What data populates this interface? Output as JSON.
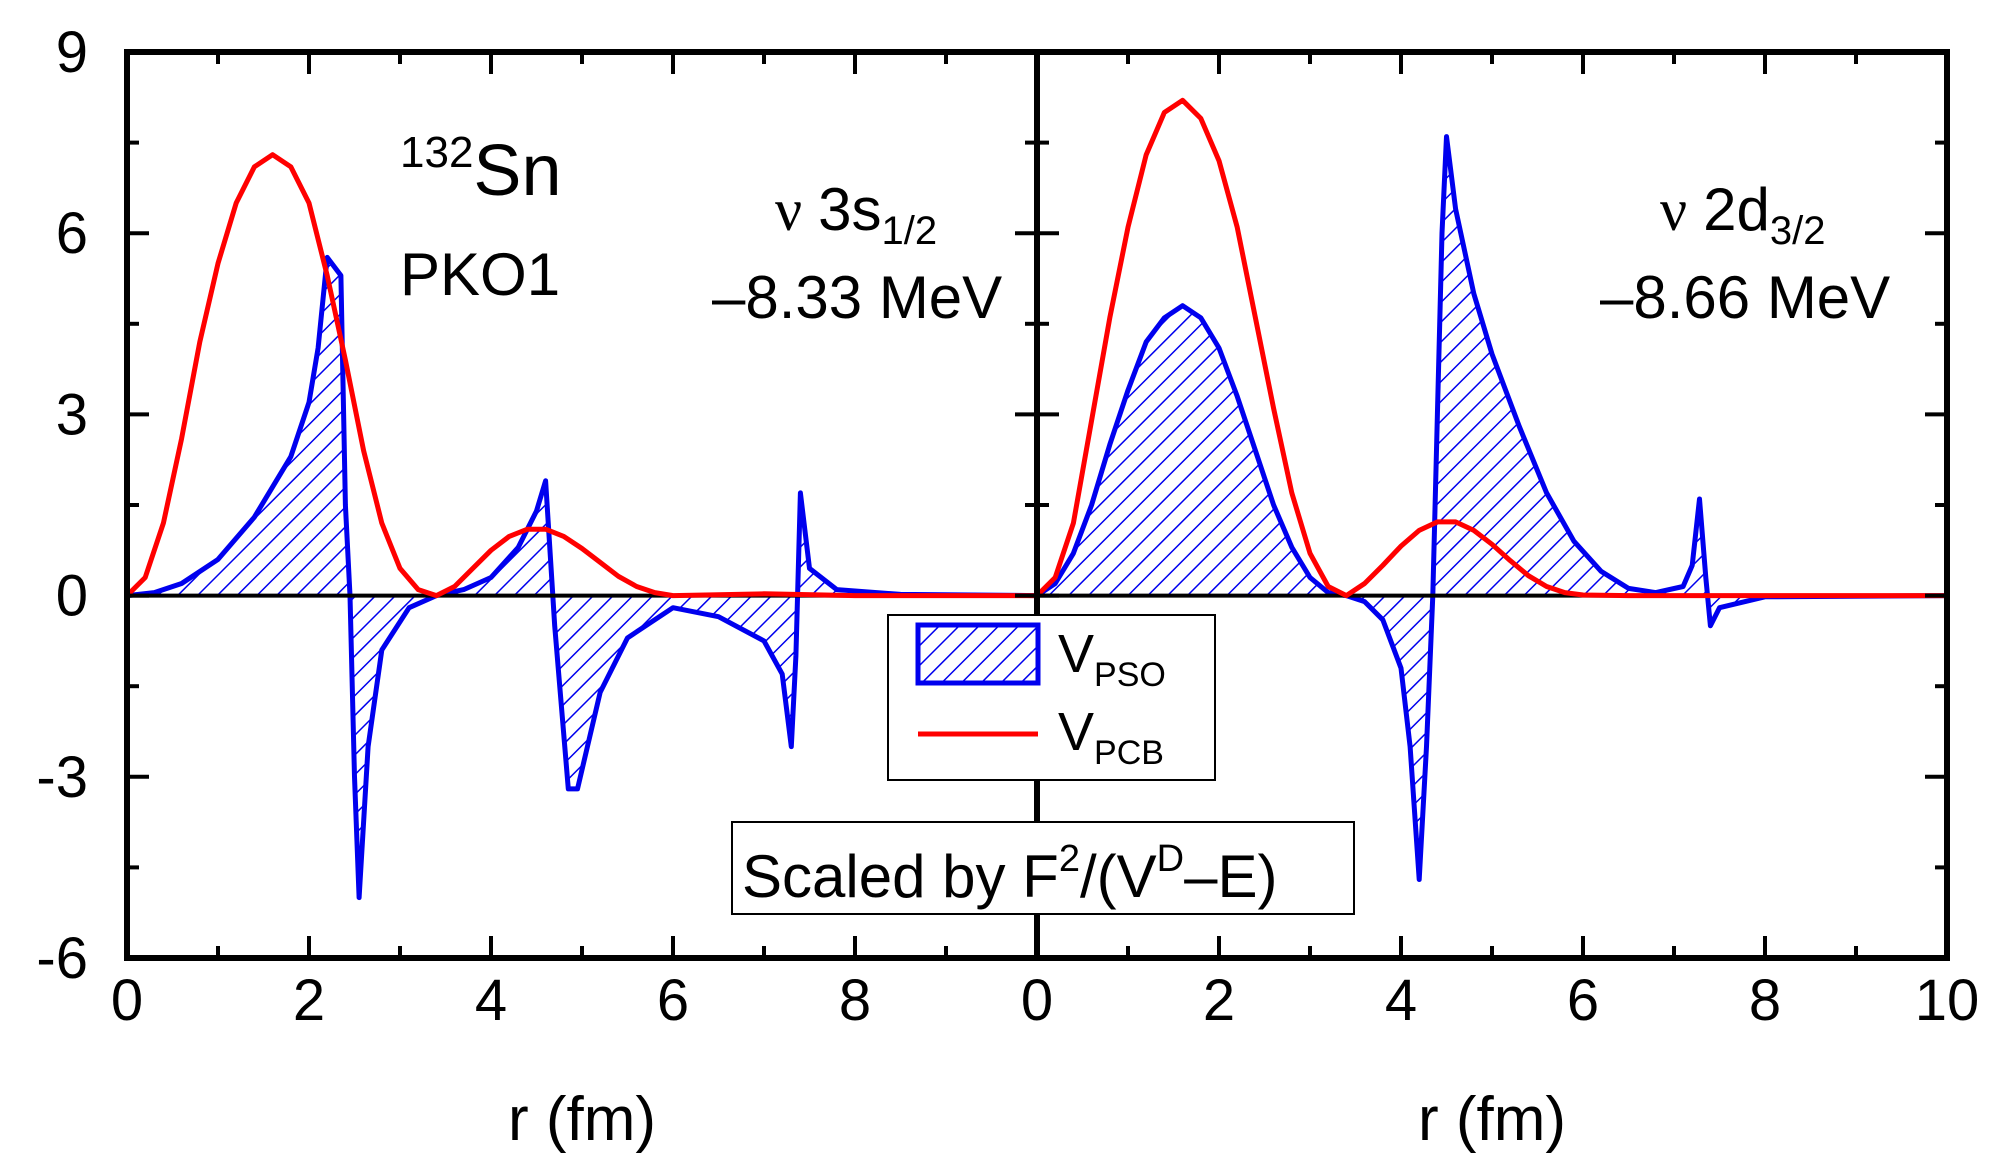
{
  "chart_data": {
    "type": "area",
    "series_colors": {
      "pso": "#0000ee",
      "pcb": "#ff0000",
      "baseline": "#000000"
    },
    "legend": {
      "pso": {
        "main": "V",
        "sub": "PSO"
      },
      "pcb": {
        "main": "V",
        "sub": "PCB"
      }
    },
    "scale_note": {
      "prefix": "Scaled by F",
      "sup1": "2",
      "mid": "/(V",
      "sup2": "D",
      "suffix": "–E)"
    },
    "nucleus": {
      "mass": "132",
      "symbol": "Sn"
    },
    "functional": "PKO1",
    "ylim": [
      -6,
      9
    ],
    "yticks": [
      "-6",
      "-3",
      "0",
      "3",
      "6",
      "9"
    ],
    "panels": [
      {
        "name": "left",
        "xlabel": "r (fm)",
        "xlim": [
          0,
          10
        ],
        "xticks": [
          "0",
          "2",
          "4",
          "6",
          "8"
        ],
        "state": {
          "nu": "ν",
          "main": "3s",
          "sub": "1/2",
          "energy": "–8.33 MeV"
        },
        "pso": [
          [
            0,
            0
          ],
          [
            0.3,
            0.05
          ],
          [
            0.6,
            0.2
          ],
          [
            1.0,
            0.6
          ],
          [
            1.4,
            1.3
          ],
          [
            1.8,
            2.3
          ],
          [
            2.0,
            3.2
          ],
          [
            2.1,
            4.1
          ],
          [
            2.2,
            5.6
          ],
          [
            2.35,
            5.3
          ],
          [
            2.4,
            1.5
          ],
          [
            2.45,
            0.0
          ],
          [
            2.5,
            -3.0
          ],
          [
            2.55,
            -5.0
          ],
          [
            2.65,
            -2.5
          ],
          [
            2.8,
            -0.9
          ],
          [
            3.1,
            -0.2
          ],
          [
            3.4,
            0.0
          ],
          [
            3.7,
            0.1
          ],
          [
            4.0,
            0.3
          ],
          [
            4.3,
            0.8
          ],
          [
            4.5,
            1.4
          ],
          [
            4.6,
            1.9
          ],
          [
            4.7,
            -0.5
          ],
          [
            4.85,
            -3.2
          ],
          [
            4.95,
            -3.2
          ],
          [
            5.2,
            -1.6
          ],
          [
            5.5,
            -0.7
          ],
          [
            6.0,
            -0.2
          ],
          [
            6.5,
            -0.35
          ],
          [
            7.0,
            -0.75
          ],
          [
            7.2,
            -1.3
          ],
          [
            7.3,
            -2.5
          ],
          [
            7.35,
            -1.0
          ],
          [
            7.4,
            1.7
          ],
          [
            7.5,
            0.45
          ],
          [
            7.8,
            0.1
          ],
          [
            8.5,
            0.02
          ],
          [
            10,
            0
          ]
        ],
        "pcb": [
          [
            0,
            0
          ],
          [
            0.2,
            0.3
          ],
          [
            0.4,
            1.2
          ],
          [
            0.6,
            2.6
          ],
          [
            0.8,
            4.2
          ],
          [
            1.0,
            5.5
          ],
          [
            1.2,
            6.5
          ],
          [
            1.4,
            7.1
          ],
          [
            1.6,
            7.3
          ],
          [
            1.8,
            7.1
          ],
          [
            2.0,
            6.5
          ],
          [
            2.2,
            5.3
          ],
          [
            2.4,
            3.9
          ],
          [
            2.6,
            2.4
          ],
          [
            2.8,
            1.2
          ],
          [
            3.0,
            0.45
          ],
          [
            3.2,
            0.1
          ],
          [
            3.4,
            0.0
          ],
          [
            3.6,
            0.15
          ],
          [
            3.8,
            0.45
          ],
          [
            4.0,
            0.75
          ],
          [
            4.2,
            0.98
          ],
          [
            4.4,
            1.1
          ],
          [
            4.6,
            1.1
          ],
          [
            4.8,
            0.98
          ],
          [
            5.0,
            0.78
          ],
          [
            5.2,
            0.55
          ],
          [
            5.4,
            0.32
          ],
          [
            5.6,
            0.15
          ],
          [
            5.8,
            0.05
          ],
          [
            6.0,
            0.0
          ],
          [
            7.0,
            0.03
          ],
          [
            8.0,
            0.0
          ],
          [
            10,
            0
          ]
        ]
      },
      {
        "name": "right",
        "xlabel": "r (fm)",
        "xlim": [
          0,
          10
        ],
        "xticks": [
          "0",
          "2",
          "4",
          "6",
          "8",
          "10"
        ],
        "state": {
          "nu": "ν",
          "main": "2d",
          "sub": "3/2",
          "energy": "–8.66 MeV"
        },
        "pso": [
          [
            0,
            0
          ],
          [
            0.2,
            0.2
          ],
          [
            0.4,
            0.7
          ],
          [
            0.6,
            1.5
          ],
          [
            0.8,
            2.5
          ],
          [
            1.0,
            3.4
          ],
          [
            1.2,
            4.2
          ],
          [
            1.4,
            4.6
          ],
          [
            1.6,
            4.8
          ],
          [
            1.8,
            4.6
          ],
          [
            2.0,
            4.1
          ],
          [
            2.2,
            3.3
          ],
          [
            2.4,
            2.4
          ],
          [
            2.6,
            1.5
          ],
          [
            2.8,
            0.8
          ],
          [
            3.0,
            0.3
          ],
          [
            3.2,
            0.05
          ],
          [
            3.4,
            0.0
          ],
          [
            3.6,
            -0.1
          ],
          [
            3.8,
            -0.4
          ],
          [
            4.0,
            -1.2
          ],
          [
            4.1,
            -2.5
          ],
          [
            4.2,
            -4.7
          ],
          [
            4.28,
            -2.5
          ],
          [
            4.35,
            0.0
          ],
          [
            4.4,
            3.0
          ],
          [
            4.45,
            6.0
          ],
          [
            4.5,
            7.6
          ],
          [
            4.6,
            6.4
          ],
          [
            4.8,
            5.0
          ],
          [
            5.0,
            4.0
          ],
          [
            5.3,
            2.8
          ],
          [
            5.6,
            1.7
          ],
          [
            5.9,
            0.9
          ],
          [
            6.2,
            0.4
          ],
          [
            6.5,
            0.12
          ],
          [
            6.8,
            0.05
          ],
          [
            7.1,
            0.15
          ],
          [
            7.2,
            0.5
          ],
          [
            7.28,
            1.6
          ],
          [
            7.35,
            0.3
          ],
          [
            7.4,
            -0.5
          ],
          [
            7.5,
            -0.2
          ],
          [
            8.0,
            -0.02
          ],
          [
            10,
            0
          ]
        ],
        "pcb": [
          [
            0,
            0
          ],
          [
            0.2,
            0.3
          ],
          [
            0.4,
            1.2
          ],
          [
            0.6,
            2.9
          ],
          [
            0.8,
            4.6
          ],
          [
            1.0,
            6.1
          ],
          [
            1.2,
            7.3
          ],
          [
            1.4,
            8.0
          ],
          [
            1.6,
            8.2
          ],
          [
            1.8,
            7.9
          ],
          [
            2.0,
            7.2
          ],
          [
            2.2,
            6.1
          ],
          [
            2.4,
            4.6
          ],
          [
            2.6,
            3.1
          ],
          [
            2.8,
            1.7
          ],
          [
            3.0,
            0.7
          ],
          [
            3.2,
            0.15
          ],
          [
            3.4,
            0.0
          ],
          [
            3.6,
            0.2
          ],
          [
            3.8,
            0.5
          ],
          [
            4.0,
            0.82
          ],
          [
            4.2,
            1.08
          ],
          [
            4.4,
            1.22
          ],
          [
            4.6,
            1.22
          ],
          [
            4.8,
            1.08
          ],
          [
            5.0,
            0.85
          ],
          [
            5.2,
            0.58
          ],
          [
            5.4,
            0.33
          ],
          [
            5.6,
            0.15
          ],
          [
            5.8,
            0.05
          ],
          [
            6.0,
            0.01
          ],
          [
            6.5,
            0.0
          ],
          [
            10,
            0
          ]
        ]
      }
    ]
  }
}
